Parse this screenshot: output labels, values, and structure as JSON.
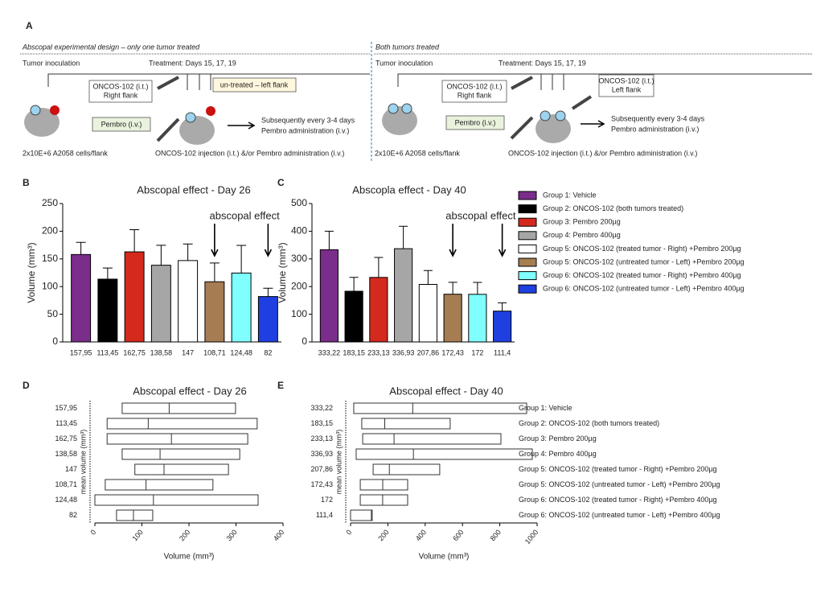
{
  "panel_a": {
    "label": "A",
    "left": {
      "heading": "Abscopal experimental design – only one tumor treated",
      "inoculation": "Tumor inoculation",
      "treatment": "Treatment: Days 15, 17, 19",
      "oncos_box": [
        "ONCOS-102 (i.t.)",
        "Right flank"
      ],
      "untreated_box": "un-treated – left flank",
      "pembro_box": "Pembro (i.v.)",
      "subsequent": [
        "Subsequently every 3-4 days",
        "Pembro administration (i.v.)"
      ],
      "cells": "2x10E+6 A2058 cells/flank",
      "injection": "ONCOS-102  injection (i.t.) &/or Pembro administration (i.v.)"
    },
    "right": {
      "heading": "Both tumors treated",
      "inoculation": "Tumor inoculation",
      "treatment": "Treatment: Days 15, 17, 19",
      "oncos_box": [
        "ONCOS-102 (i.t.)",
        "Right flank"
      ],
      "oncos_left_box": [
        "ONCOS-102 (i.t.)",
        "Left flank"
      ],
      "pembro_box": "Pembro (i.v.)",
      "subsequent": [
        "Subsequently every 3-4 days",
        "Pembro administration (i.v.)"
      ],
      "cells": "2x10E+6 A2058 cells/flank",
      "injection": "ONCOS-102  injection (i.t.) &/or Pembro administration (i.v.)"
    }
  },
  "chart_data": [
    {
      "type": "bar",
      "label": "B",
      "title": "Abscopal effect - Day 26",
      "y_label": "Volume (mm³)",
      "categories": [
        "Group 1: Vehicle",
        "Group 2: ONCOS-102 (both tumors treated)",
        "Group 3: Pembro 200µg",
        "Group 4: Pembro 400µg",
        "Group 5: ONCOS-102 (treated tumor - Right) +Pembro 200µg",
        "Group 5: ONCOS-102 (untreated tumor - Left) +Pembro 200µg",
        "Group 6: ONCOS-102 (treated tumor - Right) +Pembro 400µg",
        "Group 6: ONCOS-102 (untreated tumor - Left) +Pembro 400µg"
      ],
      "colors": [
        "#7b2d8b",
        "#000000",
        "#d42a1e",
        "#a6a6a6",
        "#ffffff",
        "#a67c52",
        "#80ffff",
        "#1f3fe0"
      ],
      "values": [
        157.95,
        113.45,
        162.75,
        138.58,
        147,
        108.71,
        124.48,
        82
      ],
      "value_labels": [
        "157,95",
        "113,45",
        "162,75",
        "138,58",
        "147",
        "108,71",
        "124,48",
        "82"
      ],
      "errors": [
        22,
        20,
        40,
        36,
        30,
        34,
        50,
        15
      ],
      "ylim": [
        0,
        250
      ],
      "yticks": [
        0,
        50,
        100,
        150,
        200,
        250
      ],
      "annotation": "abscopal effect"
    },
    {
      "type": "bar",
      "label": "C",
      "title": "Abscopla effect - Day 40",
      "y_label": "Volume (mm³)",
      "colors": [
        "#7b2d8b",
        "#000000",
        "#d42a1e",
        "#a6a6a6",
        "#ffffff",
        "#a67c52",
        "#80ffff",
        "#1f3fe0"
      ],
      "values": [
        333.22,
        183.15,
        233.13,
        336.93,
        207.86,
        172.43,
        172,
        111.4
      ],
      "value_labels": [
        "333,22",
        "183,15",
        "233,13",
        "336,93",
        "207,86",
        "172,43",
        "172",
        "111,4"
      ],
      "errors": [
        67,
        50,
        72,
        81,
        50,
        43,
        43,
        30
      ],
      "ylim": [
        0,
        500
      ],
      "yticks": [
        0,
        100,
        200,
        300,
        400,
        500
      ],
      "annotation": "abscopal effect"
    },
    {
      "type": "range",
      "label": "D",
      "title": "Abscopal effect - Day 26",
      "y_label": "mean volume (mm³)",
      "x_label": "Volume (mm³)",
      "values": [
        157.95,
        113.45,
        162.75,
        138.58,
        147,
        108.71,
        124.48,
        82
      ],
      "value_labels": [
        "157,95",
        "113,45",
        "162,75",
        "138,58",
        "147",
        "108,71",
        "124,48",
        "82"
      ],
      "mins": [
        58,
        26,
        26,
        58,
        85,
        22,
        0,
        46
      ],
      "maxs": [
        299,
        345,
        325,
        308,
        284,
        251,
        347,
        123
      ],
      "xlim": [
        0,
        400
      ],
      "xticks": [
        0,
        100,
        200,
        300,
        400
      ]
    },
    {
      "type": "range",
      "label": "E",
      "title": "Abscopal effect - Day 40",
      "y_label": "mean volume (mm³)",
      "x_label": "Volume (mm³)",
      "categories": [
        "Group 1: Vehicle",
        "Group 2: ONCOS-102 (both tumors treated)",
        "Group 3: Pembro 200µg",
        "Group 4: Pembro 400µg",
        "Group 5: ONCOS-102 (treated tumor - Right) +Pembro 200µg",
        "Group 5: ONCOS-102 (untreated tumor - Left) +Pembro 200µg",
        "Group 6: ONCOS-102 (treated tumor - Right) +Pembro 400µg",
        "Group 6: ONCOS-102 (untreated tumor - Left) +Pembro 400µg"
      ],
      "values": [
        333.22,
        183.15,
        233.13,
        336.93,
        207.86,
        172.43,
        172,
        111.4
      ],
      "value_labels": [
        "333,22",
        "183,15",
        "233,13",
        "336,93",
        "207,86",
        "172,43",
        "172",
        "111,4"
      ],
      "mins": [
        17,
        60,
        65,
        30,
        121,
        52,
        52,
        0
      ],
      "maxs": [
        944,
        534,
        806,
        974,
        478,
        306,
        306,
        116
      ],
      "xlim": [
        0,
        1000
      ],
      "xticks": [
        0,
        200,
        400,
        600,
        800,
        1000
      ]
    }
  ]
}
